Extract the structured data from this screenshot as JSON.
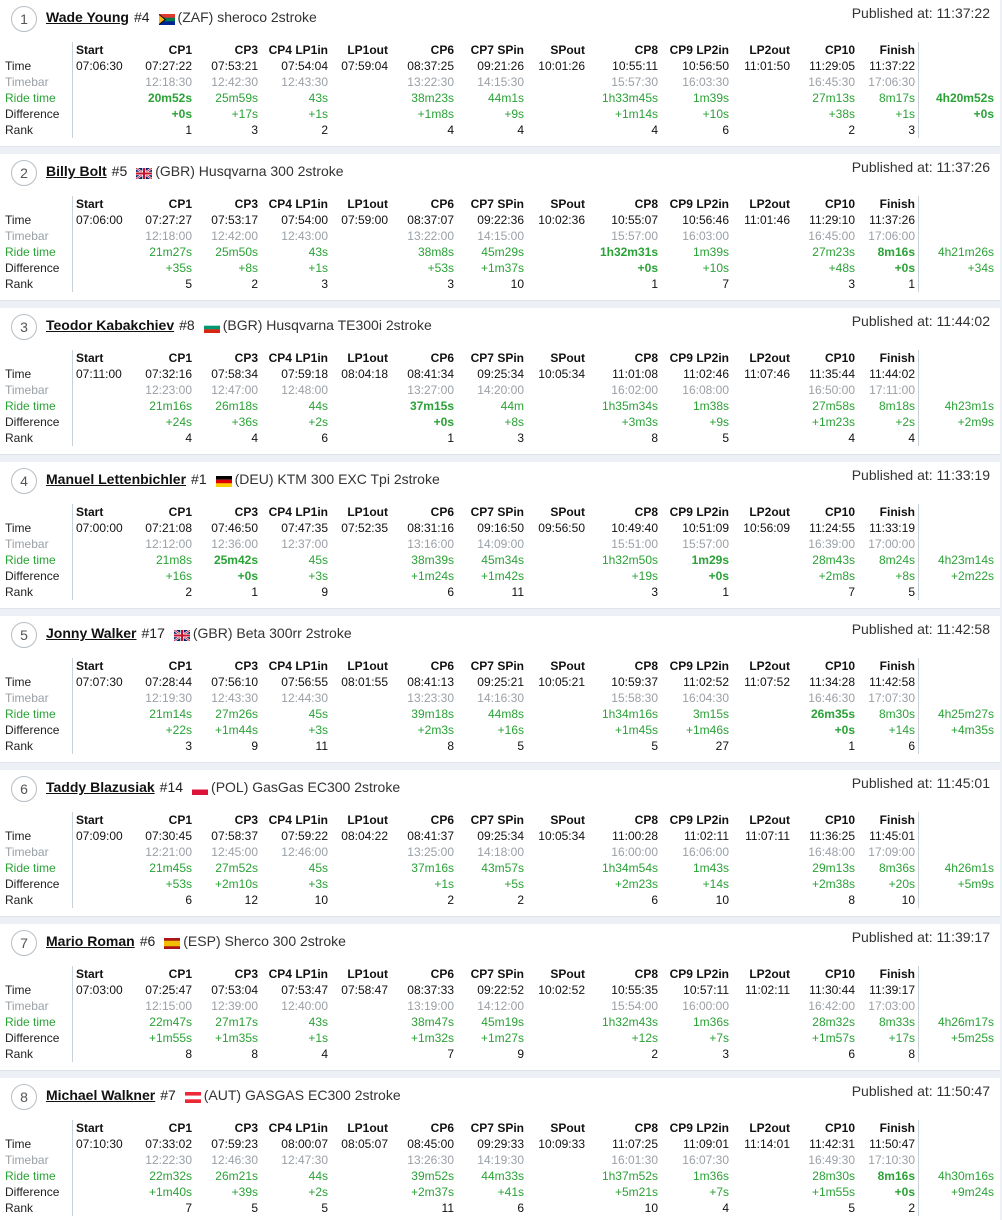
{
  "labels": {
    "time": "Time",
    "timebar": "Timebar",
    "ride_time": "Ride time",
    "difference": "Difference",
    "rank": "Rank"
  },
  "published_prefix": "Published at: ",
  "columns": [
    "Start",
    "CP1",
    "CP3",
    "CP4 LP1in",
    "LP1out",
    "CP6",
    "CP7 SPin",
    "SPout",
    "CP8",
    "CP9 LP2in",
    "LP2out",
    "CP10",
    "Finish"
  ],
  "flags": {
    "ZAF": {
      "icon": "south-africa-flag-icon",
      "colors": [
        "#007a4d",
        "#ffb612",
        "#de3831",
        "#002395"
      ]
    },
    "GBR": {
      "icon": "uk-flag-icon",
      "colors": [
        "#012169",
        "#ffffff",
        "#c8102e"
      ]
    },
    "BGR": {
      "icon": "bulgaria-flag-icon",
      "colors": [
        "#ffffff",
        "#00966e",
        "#d62612"
      ]
    },
    "DEU": {
      "icon": "germany-flag-icon",
      "colors": [
        "#000000",
        "#dd0000",
        "#ffce00"
      ]
    },
    "POL": {
      "icon": "poland-flag-icon",
      "colors": [
        "#ffffff",
        "#dc143c"
      ]
    },
    "ESP": {
      "icon": "spain-flag-icon",
      "colors": [
        "#aa151b",
        "#f1bf00",
        "#aa151b"
      ]
    },
    "AUT": {
      "icon": "austria-flag-icon",
      "colors": [
        "#ed2939",
        "#ffffff",
        "#ed2939"
      ]
    }
  },
  "riders": [
    {
      "pos": "1",
      "name": "Wade Young",
      "number": "#4",
      "country": "ZAF",
      "bike": "(ZAF) sheroco 2stroke",
      "published": "11:37:22",
      "time": [
        "07:06:30",
        "07:27:22",
        "07:53:21",
        "07:54:04",
        "07:59:04",
        "08:37:25",
        "09:21:26",
        "10:01:26",
        "10:55:11",
        "10:56:50",
        "11:01:50",
        "11:29:05",
        "11:37:22"
      ],
      "timebar": [
        "12:18:30",
        "12:42:30",
        "12:43:30",
        "13:22:30",
        "14:15:30",
        "15:57:30",
        "16:03:30",
        "16:45:30",
        "17:06:30"
      ],
      "ride": [
        "20m52s",
        "25m59s",
        "43s",
        "38m23s",
        "44m1s",
        "1h33m45s",
        "1m39s",
        "27m13s",
        "8m17s"
      ],
      "ride_best": [
        true,
        false,
        false,
        false,
        false,
        false,
        false,
        false,
        false
      ],
      "diff": [
        "+0s",
        "+17s",
        "+1s",
        "+1m8s",
        "+9s",
        "+1m14s",
        "+10s",
        "+38s",
        "+1s"
      ],
      "diff_best": [
        true,
        false,
        false,
        false,
        false,
        false,
        false,
        false,
        false
      ],
      "rank": [
        "1",
        "3",
        "2",
        "4",
        "4",
        "4",
        "6",
        "2",
        "3"
      ],
      "total": "4h20m52s",
      "total_diff": "+0s",
      "total_best": true
    },
    {
      "pos": "2",
      "name": "Billy Bolt",
      "number": "#5",
      "country": "GBR",
      "bike": "(GBR) Husqvarna 300 2stroke",
      "published": "11:37:26",
      "time": [
        "07:06:00",
        "07:27:27",
        "07:53:17",
        "07:54:00",
        "07:59:00",
        "08:37:07",
        "09:22:36",
        "10:02:36",
        "10:55:07",
        "10:56:46",
        "11:01:46",
        "11:29:10",
        "11:37:26"
      ],
      "timebar": [
        "12:18:00",
        "12:42:00",
        "12:43:00",
        "13:22:00",
        "14:15:00",
        "15:57:00",
        "16:03:00",
        "16:45:00",
        "17:06:00"
      ],
      "ride": [
        "21m27s",
        "25m50s",
        "43s",
        "38m8s",
        "45m29s",
        "1h32m31s",
        "1m39s",
        "27m23s",
        "8m16s"
      ],
      "ride_best": [
        false,
        false,
        false,
        false,
        false,
        true,
        false,
        false,
        true
      ],
      "diff": [
        "+35s",
        "+8s",
        "+1s",
        "+53s",
        "+1m37s",
        "+0s",
        "+10s",
        "+48s",
        "+0s"
      ],
      "diff_best": [
        false,
        false,
        false,
        false,
        false,
        true,
        false,
        false,
        true
      ],
      "rank": [
        "5",
        "2",
        "3",
        "3",
        "10",
        "1",
        "7",
        "3",
        "1"
      ],
      "total": "4h21m26s",
      "total_diff": "+34s",
      "total_best": false
    },
    {
      "pos": "3",
      "name": "Teodor Kabakchiev",
      "number": "#8",
      "country": "BGR",
      "bike": "(BGR) Husqvarna TE300i 2stroke",
      "published": "11:44:02",
      "time": [
        "07:11:00",
        "07:32:16",
        "07:58:34",
        "07:59:18",
        "08:04:18",
        "08:41:34",
        "09:25:34",
        "10:05:34",
        "11:01:08",
        "11:02:46",
        "11:07:46",
        "11:35:44",
        "11:44:02"
      ],
      "timebar": [
        "12:23:00",
        "12:47:00",
        "12:48:00",
        "13:27:00",
        "14:20:00",
        "16:02:00",
        "16:08:00",
        "16:50:00",
        "17:11:00"
      ],
      "ride": [
        "21m16s",
        "26m18s",
        "44s",
        "37m15s",
        "44m",
        "1h35m34s",
        "1m38s",
        "27m58s",
        "8m18s"
      ],
      "ride_best": [
        false,
        false,
        false,
        true,
        false,
        false,
        false,
        false,
        false
      ],
      "diff": [
        "+24s",
        "+36s",
        "+2s",
        "+0s",
        "+8s",
        "+3m3s",
        "+9s",
        "+1m23s",
        "+2s"
      ],
      "diff_best": [
        false,
        false,
        false,
        true,
        false,
        false,
        false,
        false,
        false
      ],
      "rank": [
        "4",
        "4",
        "6",
        "1",
        "3",
        "8",
        "5",
        "4",
        "4"
      ],
      "total": "4h23m1s",
      "total_diff": "+2m9s",
      "total_best": false
    },
    {
      "pos": "4",
      "name": "Manuel Lettenbichler",
      "number": "#1",
      "country": "DEU",
      "bike": "(DEU) KTM 300 EXC Tpi 2stroke",
      "published": "11:33:19",
      "time": [
        "07:00:00",
        "07:21:08",
        "07:46:50",
        "07:47:35",
        "07:52:35",
        "08:31:16",
        "09:16:50",
        "09:56:50",
        "10:49:40",
        "10:51:09",
        "10:56:09",
        "11:24:55",
        "11:33:19"
      ],
      "timebar": [
        "12:12:00",
        "12:36:00",
        "12:37:00",
        "13:16:00",
        "14:09:00",
        "15:51:00",
        "15:57:00",
        "16:39:00",
        "17:00:00"
      ],
      "ride": [
        "21m8s",
        "25m42s",
        "45s",
        "38m39s",
        "45m34s",
        "1h32m50s",
        "1m29s",
        "28m43s",
        "8m24s"
      ],
      "ride_best": [
        false,
        true,
        false,
        false,
        false,
        false,
        true,
        false,
        false
      ],
      "diff": [
        "+16s",
        "+0s",
        "+3s",
        "+1m24s",
        "+1m42s",
        "+19s",
        "+0s",
        "+2m8s",
        "+8s"
      ],
      "diff_best": [
        false,
        true,
        false,
        false,
        false,
        false,
        true,
        false,
        false
      ],
      "rank": [
        "2",
        "1",
        "9",
        "6",
        "11",
        "3",
        "1",
        "7",
        "5"
      ],
      "total": "4h23m14s",
      "total_diff": "+2m22s",
      "total_best": false
    },
    {
      "pos": "5",
      "name": "Jonny Walker",
      "number": "#17",
      "country": "GBR",
      "bike": "(GBR) Beta 300rr 2stroke",
      "published": "11:42:58",
      "time": [
        "07:07:30",
        "07:28:44",
        "07:56:10",
        "07:56:55",
        "08:01:55",
        "08:41:13",
        "09:25:21",
        "10:05:21",
        "10:59:37",
        "11:02:52",
        "11:07:52",
        "11:34:28",
        "11:42:58"
      ],
      "timebar": [
        "12:19:30",
        "12:43:30",
        "12:44:30",
        "13:23:30",
        "14:16:30",
        "15:58:30",
        "16:04:30",
        "16:46:30",
        "17:07:30"
      ],
      "ride": [
        "21m14s",
        "27m26s",
        "45s",
        "39m18s",
        "44m8s",
        "1h34m16s",
        "3m15s",
        "26m35s",
        "8m30s"
      ],
      "ride_best": [
        false,
        false,
        false,
        false,
        false,
        false,
        false,
        true,
        false
      ],
      "diff": [
        "+22s",
        "+1m44s",
        "+3s",
        "+2m3s",
        "+16s",
        "+1m45s",
        "+1m46s",
        "+0s",
        "+14s"
      ],
      "diff_best": [
        false,
        false,
        false,
        false,
        false,
        false,
        false,
        true,
        false
      ],
      "rank": [
        "3",
        "9",
        "11",
        "8",
        "5",
        "5",
        "27",
        "1",
        "6"
      ],
      "total": "4h25m27s",
      "total_diff": "+4m35s",
      "total_best": false
    },
    {
      "pos": "6",
      "name": "Taddy Blazusiak",
      "number": "#14",
      "country": "POL",
      "bike": "(POL) GasGas EC300 2stroke",
      "published": "11:45:01",
      "time": [
        "07:09:00",
        "07:30:45",
        "07:58:37",
        "07:59:22",
        "08:04:22",
        "08:41:37",
        "09:25:34",
        "10:05:34",
        "11:00:28",
        "11:02:11",
        "11:07:11",
        "11:36:25",
        "11:45:01"
      ],
      "timebar": [
        "12:21:00",
        "12:45:00",
        "12:46:00",
        "13:25:00",
        "14:18:00",
        "16:00:00",
        "16:06:00",
        "16:48:00",
        "17:09:00"
      ],
      "ride": [
        "21m45s",
        "27m52s",
        "45s",
        "37m16s",
        "43m57s",
        "1h34m54s",
        "1m43s",
        "29m13s",
        "8m36s"
      ],
      "ride_best": [
        false,
        false,
        false,
        false,
        false,
        false,
        false,
        false,
        false
      ],
      "diff": [
        "+53s",
        "+2m10s",
        "+3s",
        "+1s",
        "+5s",
        "+2m23s",
        "+14s",
        "+2m38s",
        "+20s"
      ],
      "diff_best": [
        false,
        false,
        false,
        false,
        false,
        false,
        false,
        false,
        false
      ],
      "rank": [
        "6",
        "12",
        "10",
        "2",
        "2",
        "6",
        "10",
        "8",
        "10"
      ],
      "total": "4h26m1s",
      "total_diff": "+5m9s",
      "total_best": false
    },
    {
      "pos": "7",
      "name": "Mario Roman",
      "number": "#6",
      "country": "ESP",
      "bike": "(ESP) Sherco 300 2stroke",
      "published": "11:39:17",
      "time": [
        "07:03:00",
        "07:25:47",
        "07:53:04",
        "07:53:47",
        "07:58:47",
        "08:37:33",
        "09:22:52",
        "10:02:52",
        "10:55:35",
        "10:57:11",
        "11:02:11",
        "11:30:44",
        "11:39:17"
      ],
      "timebar": [
        "12:15:00",
        "12:39:00",
        "12:40:00",
        "13:19:00",
        "14:12:00",
        "15:54:00",
        "16:00:00",
        "16:42:00",
        "17:03:00"
      ],
      "ride": [
        "22m47s",
        "27m17s",
        "43s",
        "38m47s",
        "45m19s",
        "1h32m43s",
        "1m36s",
        "28m32s",
        "8m33s"
      ],
      "ride_best": [
        false,
        false,
        false,
        false,
        false,
        false,
        false,
        false,
        false
      ],
      "diff": [
        "+1m55s",
        "+1m35s",
        "+1s",
        "+1m32s",
        "+1m27s",
        "+12s",
        "+7s",
        "+1m57s",
        "+17s"
      ],
      "diff_best": [
        false,
        false,
        false,
        false,
        false,
        false,
        false,
        false,
        false
      ],
      "rank": [
        "8",
        "8",
        "4",
        "7",
        "9",
        "2",
        "3",
        "6",
        "8"
      ],
      "total": "4h26m17s",
      "total_diff": "+5m25s",
      "total_best": false
    },
    {
      "pos": "8",
      "name": "Michael Walkner",
      "number": "#7",
      "country": "AUT",
      "bike": "(AUT) GASGAS EC300 2stroke",
      "published": "11:50:47",
      "time": [
        "07:10:30",
        "07:33:02",
        "07:59:23",
        "08:00:07",
        "08:05:07",
        "08:45:00",
        "09:29:33",
        "10:09:33",
        "11:07:25",
        "11:09:01",
        "11:14:01",
        "11:42:31",
        "11:50:47"
      ],
      "timebar": [
        "12:22:30",
        "12:46:30",
        "12:47:30",
        "13:26:30",
        "14:19:30",
        "16:01:30",
        "16:07:30",
        "16:49:30",
        "17:10:30"
      ],
      "ride": [
        "22m32s",
        "26m21s",
        "44s",
        "39m52s",
        "44m33s",
        "1h37m52s",
        "1m36s",
        "28m30s",
        "8m16s"
      ],
      "ride_best": [
        false,
        false,
        false,
        false,
        false,
        false,
        false,
        false,
        true
      ],
      "diff": [
        "+1m40s",
        "+39s",
        "+2s",
        "+2m37s",
        "+41s",
        "+5m21s",
        "+7s",
        "+1m55s",
        "+0s"
      ],
      "diff_best": [
        false,
        false,
        false,
        false,
        false,
        false,
        false,
        false,
        true
      ],
      "rank": [
        "7",
        "5",
        "5",
        "11",
        "6",
        "10",
        "4",
        "5",
        "2"
      ],
      "total": "4h30m16s",
      "total_diff": "+9m24s",
      "total_best": false
    }
  ]
}
